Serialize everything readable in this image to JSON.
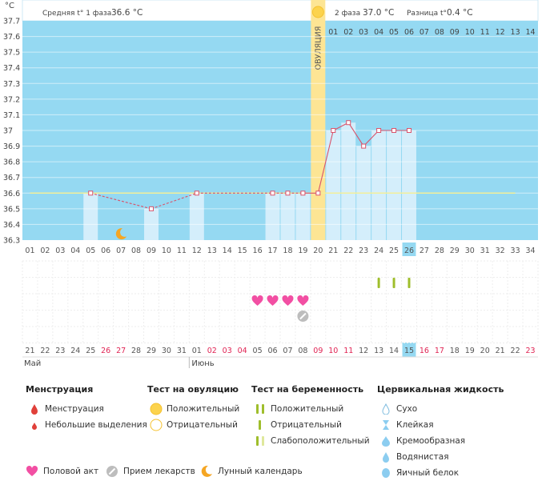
{
  "header": {
    "phase1_label": "Средняя t° 1 фаза",
    "phase1_value": "36.6 °C",
    "phase2_label": "2 фаза",
    "phase2_value": "37.0 °C",
    "diff_label": "Разница t°",
    "diff_value": "0.4 °C",
    "unit": "°C"
  },
  "ovulation_label": "ОВУЛЯЦИЯ",
  "colors": {
    "chart_bg": "#95d9f2",
    "bar": "#d4eefb",
    "ovulation": "#fde594",
    "line": "#d9536b",
    "coverline": "#f3ef9a",
    "today": "#95d9f2",
    "heart": "#f24fa3",
    "test_dark": "#9fbe2c",
    "test_light": "#dfe89c"
  },
  "chart_data": {
    "type": "line",
    "y_ticks": [
      "36.3",
      "36.4",
      "36.5",
      "36.6",
      "36.7",
      "36.8",
      "36.9",
      "37",
      "37.1",
      "37.2",
      "37.3",
      "37.4",
      "37.5",
      "37.6",
      "37.7"
    ],
    "ylim": [
      36.3,
      37.7
    ],
    "cycle_days": [
      "01",
      "02",
      "03",
      "04",
      "05",
      "06",
      "07",
      "08",
      "09",
      "10",
      "11",
      "12",
      "13",
      "14",
      "15",
      "16",
      "17",
      "18",
      "19",
      "20",
      "21",
      "22",
      "23",
      "24",
      "25",
      "26",
      "27",
      "28",
      "29",
      "30",
      "31",
      "32",
      "33",
      "34"
    ],
    "post_ovulation_days": [
      "01",
      "02",
      "03",
      "04",
      "05",
      "06",
      "07",
      "08",
      "09",
      "10",
      "11",
      "12",
      "13",
      "14"
    ],
    "temperatures": [
      {
        "day": 5,
        "value": 36.6
      },
      {
        "day": 9,
        "value": 36.5
      },
      {
        "day": 12,
        "value": 36.6
      },
      {
        "day": 17,
        "value": 36.6
      },
      {
        "day": 18,
        "value": 36.6
      },
      {
        "day": 19,
        "value": 36.6
      },
      {
        "day": 20,
        "value": 36.6
      },
      {
        "day": 21,
        "value": 37.0
      },
      {
        "day": 22,
        "value": 37.05
      },
      {
        "day": 23,
        "value": 36.9
      },
      {
        "day": 24,
        "value": 37.0
      },
      {
        "day": 25,
        "value": 37.0
      },
      {
        "day": 26,
        "value": 37.0
      }
    ],
    "solid_from_day": 19,
    "coverline": 36.6,
    "ovulation_day": 20,
    "today_day": 26,
    "moon_day": 7,
    "moon_value": 36.35,
    "hearts_days": [
      16,
      17,
      18,
      19
    ],
    "medicine_day": 19,
    "pregnancy_test_days": [
      24,
      25,
      26
    ],
    "dates": [
      "21",
      "22",
      "23",
      "24",
      "25",
      "26",
      "27",
      "28",
      "29",
      "30",
      "31",
      "01",
      "02",
      "03",
      "04",
      "05",
      "06",
      "07",
      "08",
      "09",
      "10",
      "11",
      "12",
      "13",
      "14",
      "15",
      "16",
      "17",
      "18",
      "19",
      "20",
      "21",
      "22",
      "23"
    ],
    "red_date_indices": [
      5,
      6,
      12,
      13,
      14,
      19,
      20,
      21,
      26,
      27,
      33
    ],
    "month1": "Май",
    "month2": "Июнь"
  },
  "legend": {
    "menstruation": {
      "title": "Менструация",
      "items": [
        "Менструация",
        "Небольшие выделения"
      ]
    },
    "ovulation_test": {
      "title": "Тест на овуляцию",
      "items": [
        "Положительный",
        "Отрицательный"
      ]
    },
    "pregnancy_test": {
      "title": "Тест на беременность",
      "items": [
        "Положительный",
        "Отрицательный",
        "Слабоположительный"
      ]
    },
    "cervical": {
      "title": "Цервикальная жидкость",
      "items": [
        "Сухо",
        "Клейкая",
        "Кремообразная",
        "Водянистая",
        "Яичный белок"
      ]
    },
    "bottom": [
      "Половой акт",
      "Прием лекарств",
      "Лунный календарь"
    ]
  }
}
